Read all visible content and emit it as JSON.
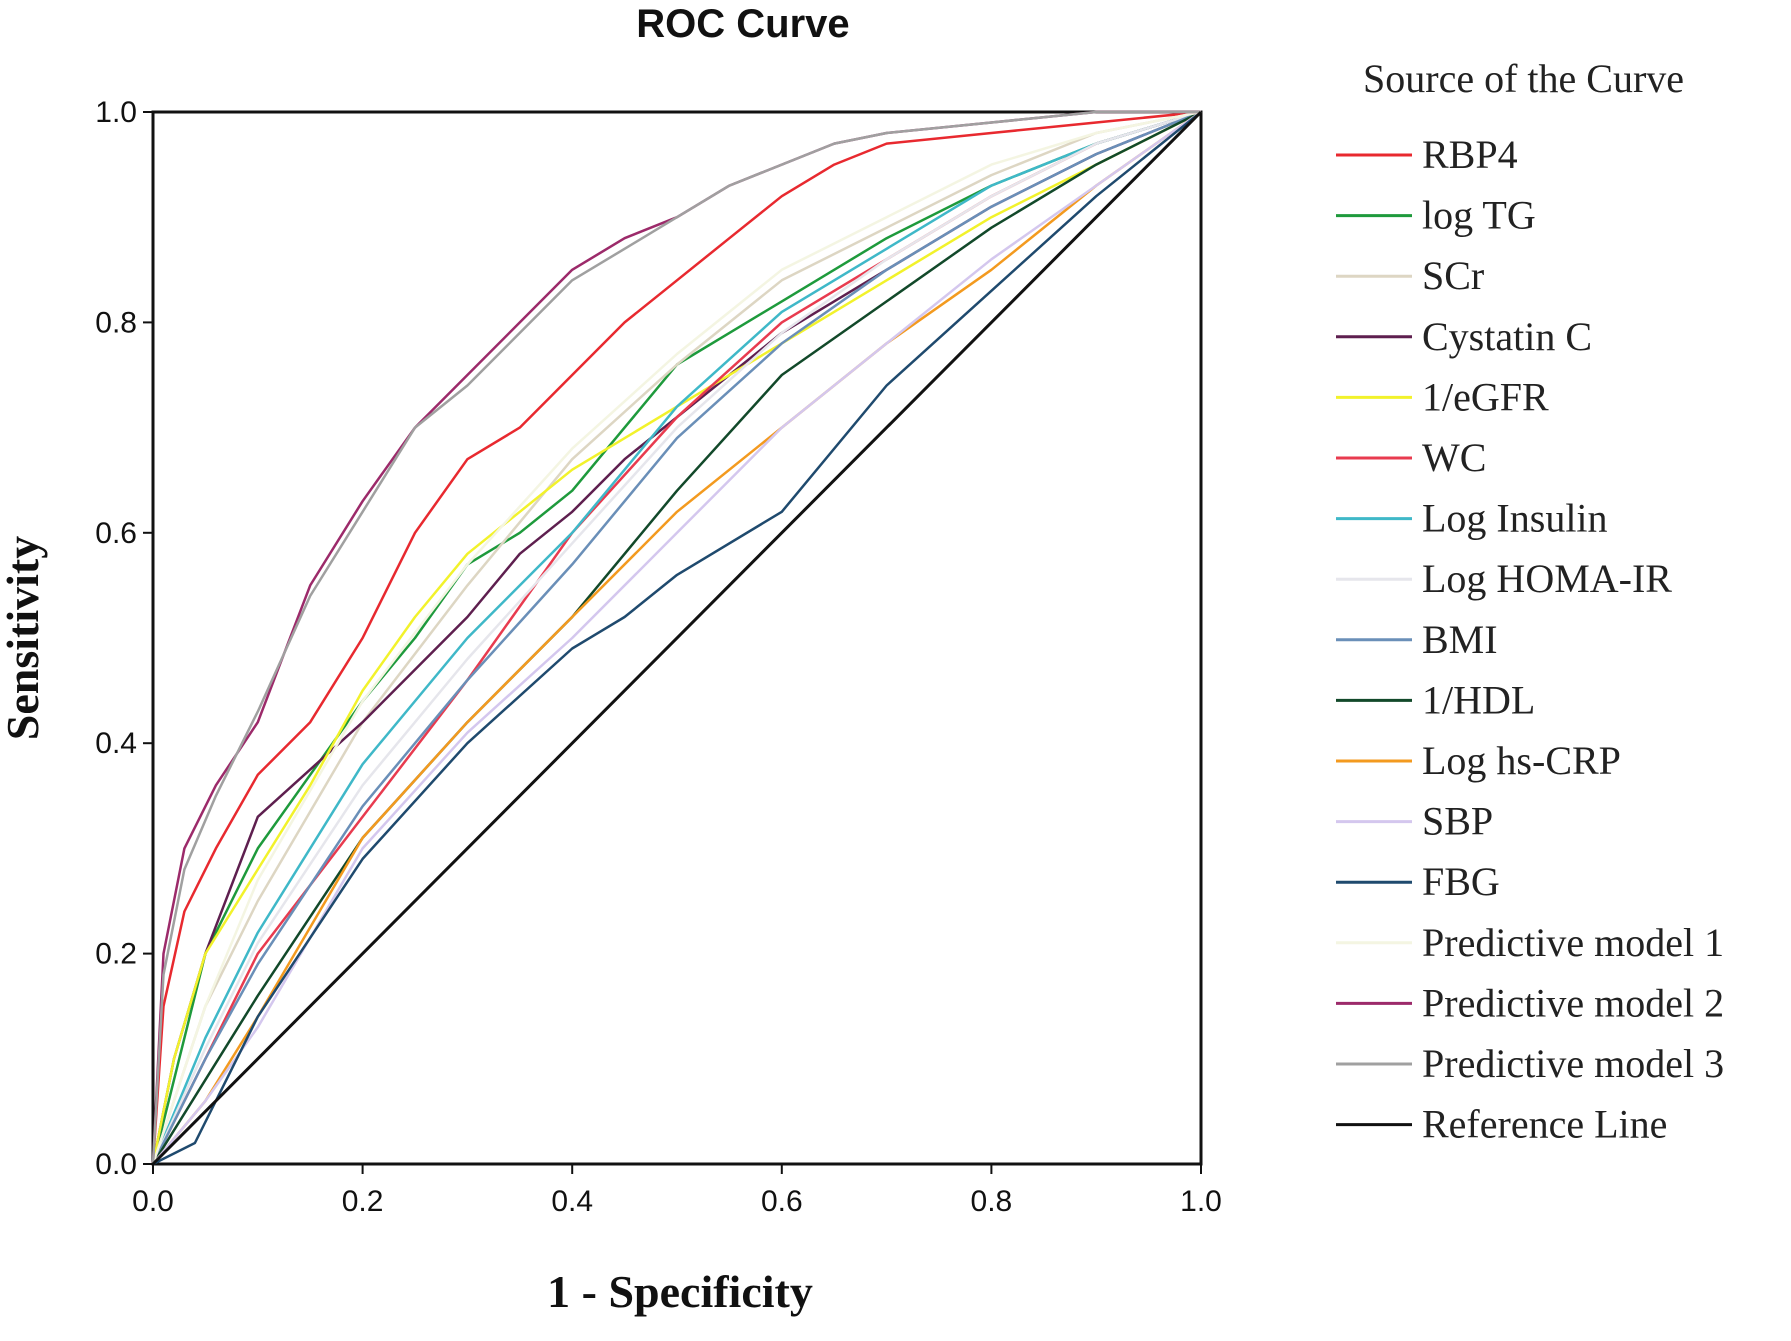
{
  "chart_data": {
    "type": "line",
    "title": "ROC Curve",
    "xlabel": "1 - Specificity",
    "ylabel": "Sensitivity",
    "xlim": [
      0,
      1
    ],
    "ylim": [
      0,
      1
    ],
    "xticks": [
      "0.0",
      "0.2",
      "0.4",
      "0.6",
      "0.8",
      "1.0"
    ],
    "yticks": [
      "0.0",
      "0.2",
      "0.4",
      "0.6",
      "0.8",
      "1.0"
    ],
    "grid": false,
    "legend": {
      "title": "Source of the Curve",
      "position": "right"
    },
    "series": [
      {
        "name": "RBP4",
        "color": "#e8292f",
        "x": [
          0,
          0.01,
          0.03,
          0.06,
          0.1,
          0.15,
          0.2,
          0.25,
          0.3,
          0.35,
          0.4,
          0.45,
          0.5,
          0.55,
          0.6,
          0.65,
          0.7,
          0.8,
          0.9,
          1.0
        ],
        "y": [
          0,
          0.15,
          0.24,
          0.3,
          0.37,
          0.42,
          0.5,
          0.6,
          0.67,
          0.7,
          0.75,
          0.8,
          0.84,
          0.88,
          0.92,
          0.95,
          0.97,
          0.98,
          0.99,
          1.0
        ]
      },
      {
        "name": "log TG",
        "color": "#1e9a3c",
        "x": [
          0,
          0.02,
          0.05,
          0.1,
          0.15,
          0.2,
          0.25,
          0.3,
          0.35,
          0.4,
          0.45,
          0.5,
          0.55,
          0.6,
          0.65,
          0.7,
          0.8,
          0.9,
          1.0
        ],
        "y": [
          0,
          0.08,
          0.2,
          0.3,
          0.37,
          0.44,
          0.5,
          0.57,
          0.6,
          0.64,
          0.7,
          0.76,
          0.79,
          0.82,
          0.85,
          0.88,
          0.93,
          0.97,
          1.0
        ]
      },
      {
        "name": "SCr",
        "color": "#ddd6c3",
        "x": [
          0,
          0.05,
          0.1,
          0.2,
          0.3,
          0.4,
          0.5,
          0.6,
          0.7,
          0.8,
          0.9,
          1.0
        ],
        "y": [
          0,
          0.15,
          0.25,
          0.42,
          0.55,
          0.67,
          0.76,
          0.84,
          0.89,
          0.94,
          0.98,
          1.0
        ]
      },
      {
        "name": "Cystatin C",
        "color": "#5e1f4f",
        "x": [
          0,
          0.02,
          0.05,
          0.1,
          0.2,
          0.3,
          0.35,
          0.4,
          0.45,
          0.5,
          0.55,
          0.6,
          0.7,
          0.8,
          0.9,
          1.0
        ],
        "y": [
          0,
          0.1,
          0.2,
          0.33,
          0.42,
          0.52,
          0.58,
          0.62,
          0.67,
          0.71,
          0.75,
          0.79,
          0.85,
          0.91,
          0.96,
          1.0
        ]
      },
      {
        "name": "1/eGFR",
        "color": "#f2f22b",
        "x": [
          0,
          0.02,
          0.05,
          0.1,
          0.15,
          0.2,
          0.25,
          0.3,
          0.35,
          0.4,
          0.5,
          0.6,
          0.7,
          0.8,
          0.9,
          1.0
        ],
        "y": [
          0,
          0.1,
          0.2,
          0.28,
          0.36,
          0.45,
          0.52,
          0.58,
          0.62,
          0.66,
          0.72,
          0.78,
          0.84,
          0.9,
          0.95,
          1.0
        ]
      },
      {
        "name": "WC",
        "color": "#e83b4f",
        "x": [
          0,
          0.05,
          0.1,
          0.2,
          0.3,
          0.4,
          0.5,
          0.6,
          0.7,
          0.8,
          0.9,
          1.0
        ],
        "y": [
          0,
          0.1,
          0.2,
          0.33,
          0.46,
          0.6,
          0.71,
          0.8,
          0.86,
          0.92,
          0.97,
          1.0
        ]
      },
      {
        "name": "Log Insulin",
        "color": "#3fb8c8",
        "x": [
          0,
          0.05,
          0.1,
          0.2,
          0.3,
          0.4,
          0.5,
          0.6,
          0.7,
          0.8,
          0.9,
          1.0
        ],
        "y": [
          0,
          0.12,
          0.22,
          0.38,
          0.5,
          0.6,
          0.72,
          0.81,
          0.87,
          0.93,
          0.97,
          1.0
        ]
      },
      {
        "name": "Log HOMA-IR",
        "color": "#e6e6ec",
        "x": [
          0,
          0.05,
          0.1,
          0.2,
          0.3,
          0.4,
          0.5,
          0.6,
          0.7,
          0.8,
          0.9,
          1.0
        ],
        "y": [
          0,
          0.11,
          0.21,
          0.36,
          0.48,
          0.59,
          0.7,
          0.79,
          0.86,
          0.92,
          0.97,
          1.0
        ]
      },
      {
        "name": "BMI",
        "color": "#6a8fb8",
        "x": [
          0,
          0.05,
          0.1,
          0.2,
          0.3,
          0.4,
          0.5,
          0.6,
          0.7,
          0.8,
          0.9,
          1.0
        ],
        "y": [
          0,
          0.1,
          0.19,
          0.34,
          0.46,
          0.57,
          0.69,
          0.78,
          0.85,
          0.91,
          0.96,
          1.0
        ]
      },
      {
        "name": "1/HDL",
        "color": "#12492a",
        "x": [
          0,
          0.05,
          0.1,
          0.2,
          0.3,
          0.4,
          0.5,
          0.6,
          0.7,
          0.8,
          0.9,
          1.0
        ],
        "y": [
          0,
          0.08,
          0.16,
          0.31,
          0.42,
          0.52,
          0.64,
          0.75,
          0.82,
          0.89,
          0.95,
          1.0
        ]
      },
      {
        "name": "Log hs-CRP",
        "color": "#f39a1f",
        "x": [
          0,
          0.05,
          0.1,
          0.2,
          0.3,
          0.4,
          0.5,
          0.6,
          0.7,
          0.8,
          0.9,
          1.0
        ],
        "y": [
          0,
          0.06,
          0.14,
          0.31,
          0.42,
          0.52,
          0.62,
          0.7,
          0.78,
          0.85,
          0.93,
          1.0
        ]
      },
      {
        "name": "SBP",
        "color": "#d4c7ee",
        "x": [
          0,
          0.05,
          0.1,
          0.2,
          0.3,
          0.4,
          0.5,
          0.6,
          0.7,
          0.8,
          0.9,
          1.0
        ],
        "y": [
          0,
          0.06,
          0.13,
          0.3,
          0.41,
          0.5,
          0.6,
          0.7,
          0.78,
          0.86,
          0.93,
          1.0
        ]
      },
      {
        "name": "FBG",
        "color": "#1f4a6e",
        "x": [
          0,
          0.04,
          0.1,
          0.2,
          0.3,
          0.4,
          0.45,
          0.5,
          0.6,
          0.7,
          0.8,
          0.9,
          1.0
        ],
        "y": [
          0,
          0.02,
          0.14,
          0.29,
          0.4,
          0.49,
          0.52,
          0.56,
          0.62,
          0.74,
          0.83,
          0.92,
          1.0
        ]
      },
      {
        "name": "Predictive model 1",
        "color": "#f4f5e2",
        "x": [
          0,
          0.05,
          0.1,
          0.2,
          0.3,
          0.4,
          0.5,
          0.6,
          0.7,
          0.8,
          0.9,
          1.0
        ],
        "y": [
          0,
          0.15,
          0.27,
          0.44,
          0.57,
          0.68,
          0.77,
          0.85,
          0.9,
          0.95,
          0.98,
          1.0
        ]
      },
      {
        "name": "Predictive model 2",
        "color": "#9c2a6a",
        "x": [
          0,
          0.01,
          0.03,
          0.06,
          0.1,
          0.15,
          0.2,
          0.25,
          0.3,
          0.35,
          0.4,
          0.45,
          0.5,
          0.55,
          0.6,
          0.65,
          0.7,
          0.8,
          0.9,
          1.0
        ],
        "y": [
          0,
          0.2,
          0.3,
          0.36,
          0.42,
          0.55,
          0.63,
          0.7,
          0.75,
          0.8,
          0.85,
          0.88,
          0.9,
          0.93,
          0.95,
          0.97,
          0.98,
          0.99,
          1.0,
          1.0
        ]
      },
      {
        "name": "Predictive model 3",
        "color": "#a0a0a0",
        "x": [
          0,
          0.01,
          0.03,
          0.06,
          0.1,
          0.15,
          0.2,
          0.25,
          0.3,
          0.35,
          0.4,
          0.45,
          0.5,
          0.55,
          0.6,
          0.65,
          0.7,
          0.8,
          0.9,
          1.0
        ],
        "y": [
          0,
          0.18,
          0.28,
          0.35,
          0.43,
          0.54,
          0.62,
          0.7,
          0.74,
          0.79,
          0.84,
          0.87,
          0.9,
          0.93,
          0.95,
          0.97,
          0.98,
          0.99,
          1.0,
          1.0
        ]
      },
      {
        "name": "Reference Line",
        "color": "#111111",
        "x": [
          0,
          1
        ],
        "y": [
          0,
          1
        ]
      }
    ]
  }
}
